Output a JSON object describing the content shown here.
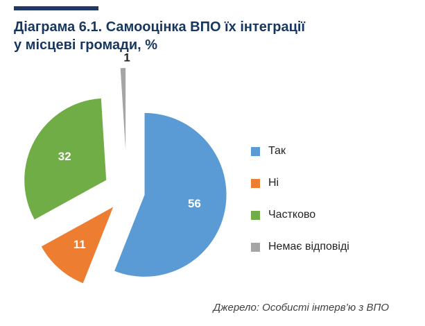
{
  "title_lines": [
    "Діаграма 6.1. Самооцінка ВПО їх інтеграції",
    "у місцеві громади, %"
  ],
  "source": "Джерело: Особисті інтерв’ю з ВПО",
  "colors": {
    "accent_bar": "#1f3864",
    "title": "#17375e"
  },
  "chart_data": {
    "type": "pie",
    "title": "Діаграма 6.1. Самооцінка ВПО їх інтеграції у місцеві громади, %",
    "exploded": true,
    "start_angle_deg": 0,
    "direction": "clockwise",
    "legend_position": "right",
    "slices": [
      {
        "label": "Так",
        "value": 56,
        "color": "#5b9bd5"
      },
      {
        "label": "Ні",
        "value": 11,
        "color": "#ed7d31"
      },
      {
        "label": "Частково",
        "value": 32,
        "color": "#70ad47"
      },
      {
        "label": "Немає відповіді",
        "value": 1,
        "color": "#a5a5a5"
      }
    ]
  }
}
